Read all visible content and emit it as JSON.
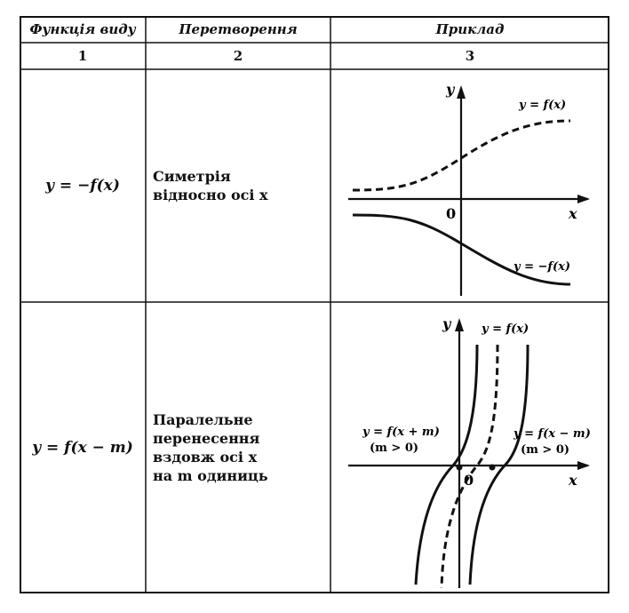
{
  "headers": [
    "Функція виду",
    "Перетворення",
    "Приклад"
  ],
  "numbers": [
    "1",
    "2",
    "3"
  ],
  "rows": [
    {
      "function": "y = −f(x)",
      "transformation": [
        "Симетрія",
        "відносно осі x"
      ],
      "example": {
        "axis_y": "y",
        "axis_x": "x",
        "origin": "0",
        "label_top": "y = f(x)",
        "label_bottom": "y = −f(x)"
      }
    },
    {
      "function": "y = f(x − m)",
      "transformation": [
        "Паралельне",
        "перенесення",
        "вздовж осі x",
        "на m одиниць"
      ],
      "example": {
        "axis_y": "y",
        "axis_x": "x",
        "origin": "0",
        "label_mid": "y = f(x)",
        "label_left": "y = f(x + m)",
        "label_left_cond": "(m > 0)",
        "label_right": "y = f(x − m)",
        "label_right_cond": "(m > 0)"
      }
    }
  ]
}
